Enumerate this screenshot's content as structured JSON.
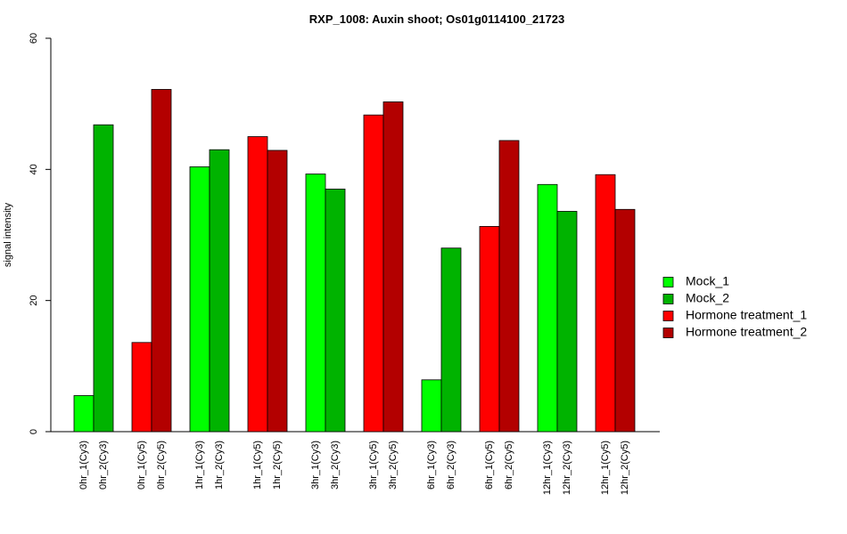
{
  "chart_data": {
    "type": "bar",
    "title": "RXP_1008: Auxin shoot; Os01g0114100_21723",
    "xlabel": "",
    "ylabel": "signal intensity",
    "ylim": [
      0,
      60
    ],
    "yticks": [
      0,
      20,
      40,
      60
    ],
    "grid": false,
    "legend_position": "right",
    "categories": [
      "0hr_1(Cy3)",
      "0hr_2(Cy3)",
      "0hr_1(Cy5)",
      "0hr_2(Cy5)",
      "1hr_1(Cy3)",
      "1hr_2(Cy3)",
      "1hr_1(Cy5)",
      "1hr_2(Cy5)",
      "3hr_1(Cy3)",
      "3hr_2(Cy3)",
      "3hr_1(Cy5)",
      "3hr_2(Cy5)",
      "6hr_1(Cy3)",
      "6hr_2(Cy3)",
      "6hr_1(Cy5)",
      "6hr_2(Cy5)",
      "12hr_1(Cy3)",
      "12hr_2(Cy3)",
      "12hr_1(Cy5)",
      "12hr_2(Cy5)"
    ],
    "values": [
      5.5,
      46.8,
      13.6,
      52.2,
      40.4,
      43.0,
      45.0,
      42.9,
      39.3,
      37.0,
      48.3,
      50.3,
      7.9,
      28.0,
      31.3,
      44.4,
      37.7,
      33.6,
      39.2,
      33.9
    ],
    "bar_series": [
      0,
      1,
      2,
      3,
      0,
      1,
      2,
      3,
      0,
      1,
      2,
      3,
      0,
      1,
      2,
      3,
      0,
      1,
      2,
      3
    ],
    "series": [
      {
        "name": "Mock_1",
        "color": "#00ff00"
      },
      {
        "name": "Mock_2",
        "color": "#00b300"
      },
      {
        "name": "Hormone treatment_1",
        "color": "#ff0000"
      },
      {
        "name": "Hormone treatment_2",
        "color": "#b30000"
      }
    ]
  }
}
